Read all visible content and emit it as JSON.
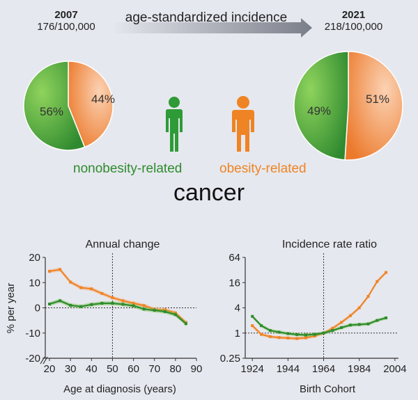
{
  "top": {
    "left_year": "2007",
    "left_rate": "176/100,000",
    "right_year": "2021",
    "right_rate": "218/100,000",
    "arrow_label": "age-standardized incidence",
    "legend_green": "nonobesity-related",
    "legend_orange": "obesity-related",
    "center_word": "cancer",
    "colors": {
      "green": "#2e8b2e",
      "orange": "#ef8424",
      "green_light": "#7cc44e",
      "orange_light": "#f6b48a"
    },
    "icons": [
      "person-icon-green",
      "person-icon-orange"
    ]
  },
  "chart_data": [
    {
      "type": "pie",
      "name": "2007",
      "labels": [
        "nonobesity-related",
        "obesity-related"
      ],
      "values": [
        56,
        44
      ],
      "value_labels": [
        "56%",
        "44%"
      ]
    },
    {
      "type": "pie",
      "name": "2021",
      "labels": [
        "nonobesity-related",
        "obesity-related"
      ],
      "values": [
        49,
        51
      ],
      "value_labels": [
        "49%",
        "51%"
      ]
    },
    {
      "type": "line",
      "title": "Annual change",
      "xlabel": "Age at diagnosis (years)",
      "ylabel": "% per year",
      "xlim": [
        18,
        90
      ],
      "ylim": [
        -20,
        20
      ],
      "xticks": [
        20,
        30,
        40,
        50,
        60,
        70,
        80,
        90
      ],
      "yticks": [
        20,
        10,
        0,
        -10,
        -20
      ],
      "vline": 50,
      "hline": 0,
      "series": [
        {
          "name": "obesity-related",
          "x": [
            20,
            25,
            30,
            35,
            40,
            45,
            50,
            55,
            60,
            65,
            70,
            75,
            80,
            85
          ],
          "y": [
            14.5,
            15.2,
            10.2,
            8.0,
            7.5,
            5.7,
            4.0,
            2.8,
            1.8,
            0.9,
            -0.6,
            -0.8,
            -2.0,
            -5.8
          ]
        },
        {
          "name": "nonobesity-related",
          "x": [
            20,
            25,
            30,
            35,
            40,
            45,
            50,
            55,
            60,
            65,
            70,
            75,
            80,
            85
          ],
          "y": [
            1.5,
            2.8,
            1.0,
            0.5,
            1.3,
            1.8,
            1.8,
            1.4,
            0.8,
            -0.5,
            -1.0,
            -1.5,
            -2.7,
            -6.3
          ]
        }
      ]
    },
    {
      "type": "line",
      "title": "Incidence rate ratio",
      "xlabel": "Birth Cohort",
      "ylabel": "",
      "yscale": "log2",
      "xlim": [
        1920,
        2006
      ],
      "ylim": [
        0.25,
        64
      ],
      "xticks": [
        1924,
        1944,
        1964,
        1984,
        2004
      ],
      "yticks": [
        64,
        16,
        4,
        1,
        0.25
      ],
      "ytick_labels": [
        "64",
        "16",
        "4",
        "1",
        "0.25"
      ],
      "vline": 1964,
      "hline": 1,
      "series": [
        {
          "name": "obesity-related",
          "x": [
            1924,
            1929,
            1934,
            1939,
            1944,
            1949,
            1954,
            1959,
            1964,
            1969,
            1974,
            1979,
            1984,
            1989,
            1994,
            1999
          ],
          "y": [
            1.5,
            0.93,
            0.82,
            0.78,
            0.76,
            0.74,
            0.77,
            0.85,
            1.0,
            1.3,
            1.8,
            2.6,
            4.0,
            7.5,
            17,
            28
          ]
        },
        {
          "name": "nonobesity-related",
          "x": [
            1924,
            1929,
            1934,
            1939,
            1944,
            1949,
            1954,
            1959,
            1964,
            1969,
            1974,
            1979,
            1984,
            1989,
            1994,
            1999
          ],
          "y": [
            2.5,
            1.5,
            1.15,
            1.05,
            0.97,
            0.92,
            0.9,
            0.93,
            1.0,
            1.15,
            1.35,
            1.55,
            1.6,
            1.65,
            2.0,
            2.3
          ]
        }
      ]
    }
  ]
}
